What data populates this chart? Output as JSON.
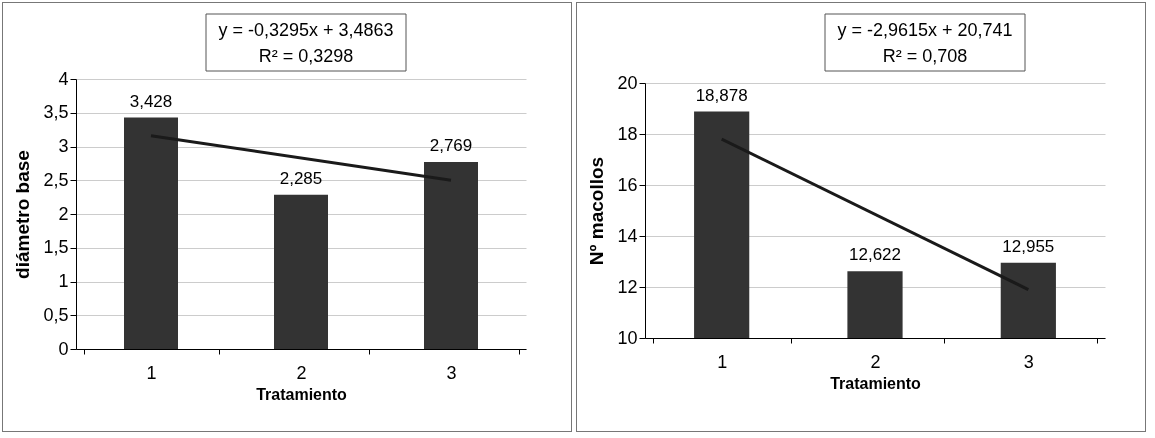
{
  "chart_data": [
    {
      "type": "bar",
      "categories": [
        "1",
        "2",
        "3"
      ],
      "xlabel": "Tratamiento",
      "ylabel": "diámetro base",
      "ylim": [
        0,
        4
      ],
      "yticks": [
        0,
        {
          "value": 0.5,
          "label": "0,5"
        },
        1,
        {
          "value": 1.5,
          "label": "1,5"
        },
        2,
        {
          "value": 2.5,
          "label": "2,5"
        },
        3,
        {
          "value": 3.5,
          "label": "3,5"
        },
        4
      ],
      "grid": "y",
      "series": [
        {
          "color": "#333333",
          "values": [
            3.428,
            2.285,
            2.769
          ],
          "value_labels": [
            "3,428",
            "2,285",
            "2,769"
          ]
        },
        {
          "type": "line",
          "color": "#1a1a1a",
          "x": [
            "1",
            "3"
          ],
          "values": [
            3.16,
            2.5
          ]
        }
      ],
      "annotations": [
        "y = -0,3295x + 3,4863",
        "R² = 0,3298"
      ]
    },
    {
      "type": "bar",
      "categories": [
        "1",
        "2",
        "3"
      ],
      "xlabel": "Tratamiento",
      "ylabel": "Nº macollos",
      "ylim": [
        10,
        20
      ],
      "yticks": [
        10,
        12,
        14,
        16,
        18,
        20
      ],
      "grid": "y",
      "series": [
        {
          "color": "#333333",
          "values": [
            18.878,
            12.622,
            12.955
          ],
          "value_labels": [
            "18,878",
            "12,622",
            "12,955"
          ]
        },
        {
          "type": "line",
          "color": "#1a1a1a",
          "x": [
            "1",
            "3"
          ],
          "values": [
            17.8,
            11.9
          ]
        }
      ],
      "annotations": [
        "y = -2,9615x + 20,741",
        "R² = 0,708"
      ]
    }
  ]
}
